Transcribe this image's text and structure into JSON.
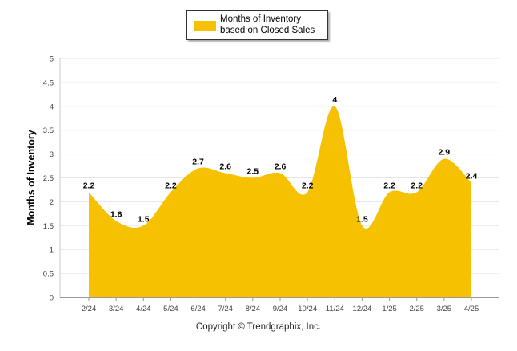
{
  "chart_data": {
    "type": "area",
    "title": "",
    "xlabel": "",
    "ylabel": "Months of Inventory",
    "categories": [
      "2/24",
      "3/24",
      "4/24",
      "5/24",
      "6/24",
      "7/24",
      "8/24",
      "9/24",
      "10/24",
      "11/24",
      "12/24",
      "1/25",
      "2/25",
      "3/25",
      "4/25"
    ],
    "series": [
      {
        "name": "Months of Inventory based on Closed Sales",
        "values": [
          2.2,
          1.6,
          1.5,
          2.2,
          2.7,
          2.6,
          2.5,
          2.6,
          2.2,
          4,
          1.5,
          2.2,
          2.2,
          2.9,
          2.4
        ],
        "color": "#F5C100"
      }
    ],
    "ylim": [
      0,
      5
    ],
    "yticks": [
      "0",
      "0.5",
      "1",
      "1.5",
      "2",
      "2.5",
      "3",
      "3.5",
      "4",
      "4.5",
      "5"
    ],
    "grid": true,
    "legend_position": "top-center",
    "footer": "Copyright © Trendgraphix, Inc."
  }
}
